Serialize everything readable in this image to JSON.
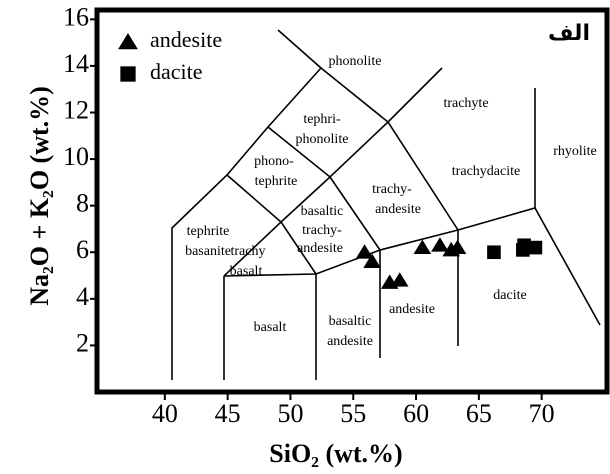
{
  "chart_data": {
    "type": "scatter",
    "title": "الف",
    "x_label": "SiO₂ (wt.%)",
    "y_label": "Na₂O + K₂O (wt.%)",
    "xlim": [
      34.6,
      75.2
    ],
    "ylim": [
      0,
      16.4
    ],
    "xticks": [
      40,
      45,
      50,
      55,
      60,
      65,
      70
    ],
    "yticks": [
      2,
      4,
      6,
      8,
      10,
      12,
      14,
      16
    ],
    "legend": "top-left",
    "series": [
      {
        "name": "andesite",
        "color": "#000000",
        "marker": "triangle",
        "x": [
          55.9,
          56.5,
          57.9,
          58.7,
          60.5,
          61.9,
          62.8,
          63.3
        ],
        "values": [
          6.0,
          5.6,
          4.7,
          4.8,
          6.2,
          6.3,
          6.1,
          6.2
        ]
      },
      {
        "name": "dacite",
        "color": "#000000",
        "marker": "square",
        "x": [
          66.2,
          68.6,
          68.5,
          69.5
        ],
        "values": [
          6.0,
          6.3,
          6.1,
          6.2
        ]
      }
    ],
    "fields": [
      [
        "phonolite"
      ],
      [
        "tephri-",
        "phonolite"
      ],
      [
        "trachyte"
      ],
      [
        "rhyolite"
      ],
      [
        "trachydacite"
      ],
      [
        "phono-",
        "tephrite"
      ],
      [
        "trachy-",
        "andesite"
      ],
      [
        "basaltic",
        "trachy-",
        "andesite"
      ],
      [
        "tephrite",
        "basanite"
      ],
      [
        "trachy",
        "basalt"
      ],
      [
        "basalt"
      ],
      [
        "basaltic",
        "andesite"
      ],
      [
        "andesite"
      ],
      [
        "dacite"
      ]
    ]
  }
}
